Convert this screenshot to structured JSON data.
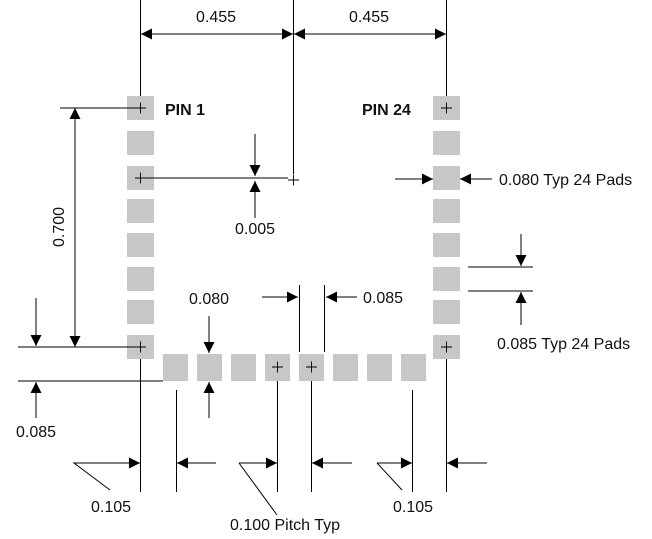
{
  "labels": {
    "top_left_dim": "0.455",
    "top_right_dim": "0.455",
    "pin1": "PIN 1",
    "pin24": "PIN 24",
    "vertical_dim": "0.700",
    "offset_dim": "0.005",
    "pad_width_note": "0.080 Typ 24 Pads",
    "pad_height_dim": "0.080",
    "gap_dim": "0.085",
    "pad_length_note": "0.085 Typ 24 Pads",
    "left_bottom_dim": "0.085",
    "left_edge_dim": "0.105",
    "right_edge_dim": "0.105",
    "pitch_note": "0.100 Pitch Typ"
  },
  "colors": {
    "pad": "#c7c7c7",
    "line": "#000000"
  }
}
